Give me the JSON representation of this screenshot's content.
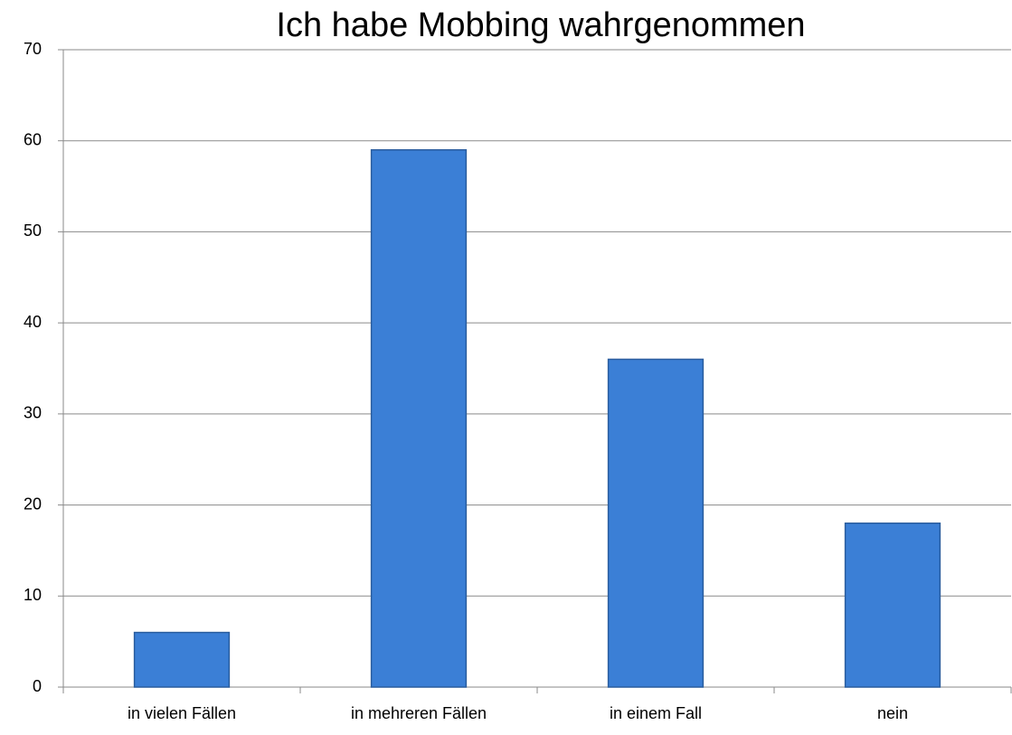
{
  "chart_data": {
    "type": "bar",
    "title": "Ich habe Mobbing wahrgenommen",
    "categories": [
      "in vielen Fällen",
      "in mehreren Fällen",
      "in einem Fall",
      "nein"
    ],
    "values": [
      6,
      59,
      36,
      18
    ],
    "color": "#3b7fd6",
    "ylim": [
      0,
      70
    ],
    "yticks": [
      0,
      10,
      20,
      30,
      40,
      50,
      60,
      70
    ],
    "grid": true
  }
}
